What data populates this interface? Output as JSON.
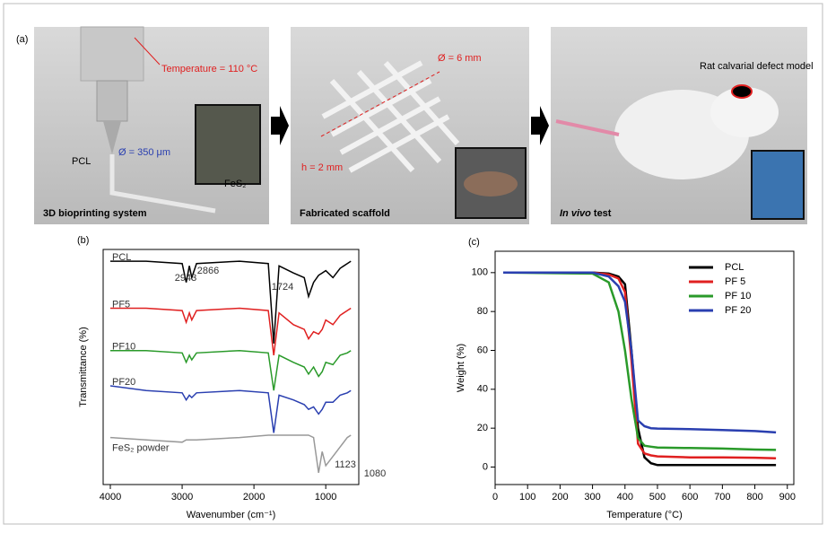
{
  "panel_a": {
    "label": "(a)",
    "image1": {
      "temperature": "Temperature = 110 °C",
      "pcl": "PCL",
      "diameter": "Ø = 350 μm",
      "fes2": "FeS₂",
      "caption": "3D bioprinting system"
    },
    "image2": {
      "diameter": "Ø = 6 mm",
      "height": "h = 2 mm",
      "caption": "Fabricated scaffold"
    },
    "image3": {
      "model": "Rat calvarial defect model",
      "caption_italic": "In vivo",
      "caption_rest": "test"
    }
  },
  "chart_data": [
    {
      "type": "line",
      "panel_label": "(b)",
      "x_label": "Wavenumber (cm⁻¹)",
      "y_label": "Transmittance (%)",
      "x": [
        4000,
        3500,
        3000,
        2943,
        2900,
        2866,
        2800,
        2200,
        1800,
        1724,
        1650,
        1450,
        1300,
        1240,
        1170,
        1100,
        1050,
        1000,
        900,
        800,
        700,
        650
      ],
      "xlim": [
        4100,
        540
      ],
      "xticks": [
        4000,
        3000,
        2000,
        1000
      ],
      "ylim": [
        0,
        100
      ],
      "series": [
        {
          "name": "PCL",
          "color": "#000000",
          "values": [
            95,
            95,
            94,
            86,
            93,
            88,
            94,
            95,
            94,
            60,
            93,
            90,
            88,
            80,
            86,
            89,
            90,
            91,
            88,
            92,
            94,
            95
          ]
        },
        {
          "name": "PF5",
          "color": "#e02020",
          "values": [
            75,
            75,
            74,
            69,
            73,
            70,
            74,
            75,
            74,
            55,
            73,
            68,
            66,
            62,
            65,
            64,
            66,
            70,
            68,
            72,
            74,
            75
          ]
        },
        {
          "name": "PF10",
          "color": "#2a9a2a",
          "values": [
            57,
            57,
            56,
            52,
            55,
            53,
            56,
            57,
            56,
            40,
            55,
            52,
            50,
            47,
            50,
            46,
            48,
            52,
            51,
            55,
            56,
            57
          ]
        },
        {
          "name": "PF20",
          "color": "#2a3fb0",
          "values": [
            42,
            40,
            39,
            36,
            38,
            37,
            39,
            40,
            39,
            22,
            38,
            36,
            34,
            32,
            33,
            30,
            32,
            35,
            35,
            38,
            39,
            40
          ]
        },
        {
          "name": "FeS₂ powder",
          "color": "#999999",
          "values": [
            20,
            19,
            18,
            19,
            19,
            19,
            19,
            20,
            21,
            21,
            21,
            21,
            21,
            21,
            20,
            5,
            14,
            8,
            12,
            16,
            20,
            21
          ]
        }
      ],
      "annotations": [
        "2943",
        "2866",
        "1724",
        "1123",
        "1080"
      ]
    },
    {
      "type": "line",
      "panel_label": "(c)",
      "x_label": "Temperature (°C)",
      "y_label": "Weight (%)",
      "x": [
        25,
        300,
        350,
        380,
        400,
        420,
        440,
        460,
        480,
        500,
        600,
        700,
        800,
        865
      ],
      "xlim": [
        0,
        920
      ],
      "xticks": [
        0,
        100,
        200,
        300,
        400,
        500,
        600,
        700,
        800,
        900
      ],
      "ylim": [
        -9,
        111
      ],
      "yticks": [
        0,
        20,
        40,
        60,
        80,
        100
      ],
      "legend": "upper right",
      "series": [
        {
          "name": "PCL",
          "color": "#000000",
          "values": [
            100,
            100,
            99.5,
            98,
            94,
            60,
            20,
            5,
            2,
            1,
            1,
            1,
            1,
            1
          ]
        },
        {
          "name": "PF 5",
          "color": "#e02020",
          "values": [
            100,
            100,
            99,
            97,
            90,
            55,
            12,
            7,
            6,
            5.5,
            5,
            5,
            4.8,
            4.5
          ]
        },
        {
          "name": "PF 10",
          "color": "#2a9a2a",
          "values": [
            100,
            99.5,
            95,
            80,
            60,
            35,
            15,
            11,
            10.5,
            10,
            9.8,
            9.5,
            9,
            8.8
          ]
        },
        {
          "name": "PF 20",
          "color": "#2a3fb0",
          "values": [
            100,
            100,
            98,
            93,
            85,
            60,
            24,
            21,
            20,
            19.8,
            19.5,
            19,
            18.5,
            17.8
          ]
        }
      ]
    }
  ]
}
